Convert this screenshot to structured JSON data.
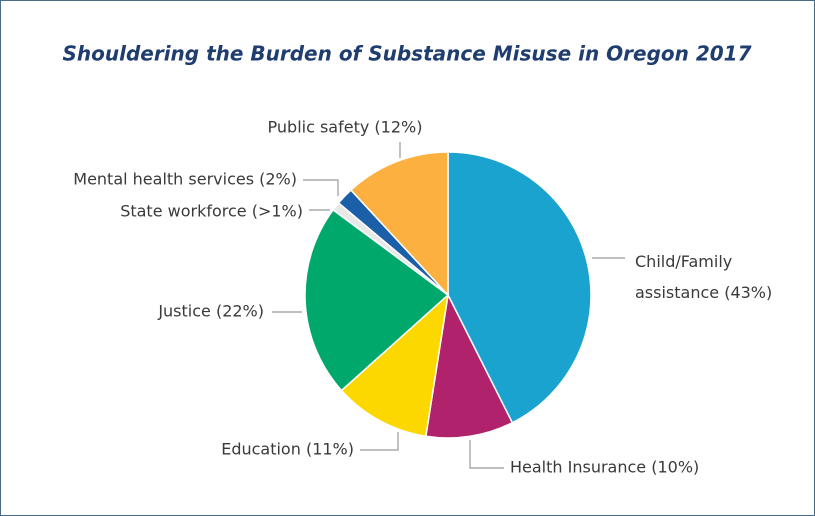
{
  "chart_data": {
    "type": "pie",
    "title": "Shouldering the Burden of Substance Misuse in Oregon 2017",
    "categories": [
      "Child/Family assistance (43%)",
      "Health Insurance (10%)",
      "Education (11%)",
      "Justice (22%)",
      "State workforce (>1%)",
      "Mental health services (2%)",
      "Public safety (12%)"
    ],
    "values": [
      43,
      10,
      11,
      22,
      1,
      2,
      12
    ],
    "colors": [
      "#1ba3cf",
      "#b0226b",
      "#fcd800",
      "#00a86b",
      "#e8e8e8",
      "#1a5fa8",
      "#fbb040"
    ]
  }
}
